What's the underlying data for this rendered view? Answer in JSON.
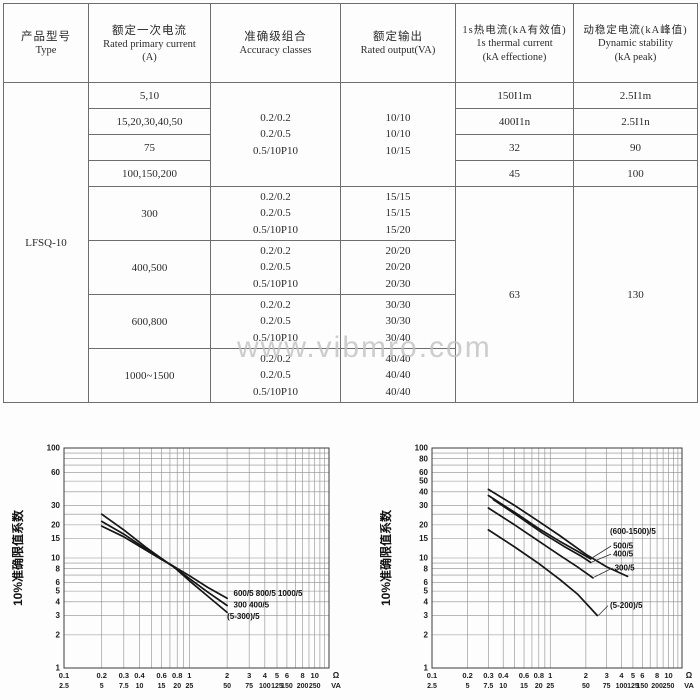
{
  "watermark": "www.vibmro.com",
  "table": {
    "headers": [
      {
        "zh": "产品型号",
        "en": "Type",
        "unit": ""
      },
      {
        "zh": "额定一次电流",
        "en": "Rated primary current",
        "unit": "(A)"
      },
      {
        "zh": "准确级组合",
        "en": "Accuracy classes",
        "unit": ""
      },
      {
        "zh": "额定输出",
        "en": "Rated output(VA)",
        "unit": ""
      },
      {
        "zh": "1s热电流(kA有效值)",
        "en": "1s thermal current",
        "unit": "(kA effectione)"
      },
      {
        "zh": "动稳定电流(kA峰值)",
        "en": "Dynamic stability",
        "unit": "(kA peak)"
      }
    ],
    "type_value": "LFSQ-10",
    "group1": {
      "currents": [
        "5,10",
        "15,20,30,40,50",
        "75",
        "100,150,200"
      ],
      "accuracy": [
        "0.2/0.2",
        "0.2/0.5",
        "0.5/10P10"
      ],
      "output": [
        "10/10",
        "10/10",
        "10/15"
      ],
      "thermal": [
        "150I1m",
        "400I1n",
        "32",
        "45"
      ],
      "dynamic": [
        "2.5I1m",
        "2.5I1n",
        "90",
        "100"
      ]
    },
    "group2": {
      "rows": [
        {
          "current": "300",
          "accuracy": [
            "0.2/0.2",
            "0.2/0.5",
            "0.5/10P10"
          ],
          "output": [
            "15/15",
            "15/15",
            "15/20"
          ]
        },
        {
          "current": "400,500",
          "accuracy": [
            "0.2/0.2",
            "0.2/0.5",
            "0.5/10P10"
          ],
          "output": [
            "20/20",
            "20/20",
            "20/30"
          ]
        },
        {
          "current": "600,800",
          "accuracy": [
            "0.2/0.2",
            "0.2/0.5",
            "0.5/10P10"
          ],
          "output": [
            "30/30",
            "30/30",
            "30/40"
          ]
        },
        {
          "current": "1000~1500",
          "accuracy": [
            "0.2/0.2",
            "0.2/0.5",
            "0.5/10P10"
          ],
          "output": [
            "40/40",
            "40/40",
            "40/40"
          ]
        }
      ],
      "thermal": "63",
      "dynamic": "130"
    }
  },
  "chart_data": [
    {
      "type": "line",
      "title": "",
      "ylabel": "10%准确限值系数",
      "xlabel": "",
      "xlim": [
        0.1,
        13
      ],
      "ylim": [
        1,
        100
      ],
      "log_x": true,
      "log_y": true,
      "grid": true,
      "x_tick_values": [
        0.1,
        0.2,
        0.3,
        0.4,
        0.6,
        0.8,
        1,
        2,
        3,
        4,
        5,
        6,
        8,
        10
      ],
      "x_tick_labels_primary": [
        "0.1",
        "0.2",
        "0.3",
        "0.4",
        "0.6",
        "0.8",
        "1",
        "2",
        "3",
        "4",
        "5",
        "6",
        "8",
        "10"
      ],
      "x_tick_labels_secondary": [
        "2.5",
        "5",
        "7.5",
        "10",
        "15",
        "20",
        "25",
        "50",
        "75",
        "100",
        "125",
        "150",
        "200",
        "250"
      ],
      "x_unit_primary": "Ω",
      "x_unit_secondary": "VA",
      "y_tick_values": [
        1,
        2,
        3,
        4,
        5,
        6,
        8,
        10,
        15,
        20,
        30,
        60,
        100
      ],
      "series": [
        {
          "name": "(5-300)/5",
          "points": [
            [
              0.2,
              25
            ],
            [
              0.3,
              18
            ],
            [
              0.45,
              12.5
            ],
            [
              0.6,
              9.9
            ],
            [
              0.75,
              8.3
            ],
            [
              1,
              6.2
            ],
            [
              1.4,
              4.5
            ],
            [
              2,
              3.2
            ]
          ]
        },
        {
          "name": "300 400/5",
          "points": [
            [
              0.2,
              21.5
            ],
            [
              0.3,
              16.5
            ],
            [
              0.45,
              12.1
            ],
            [
              0.6,
              9.8
            ],
            [
              0.75,
              8.3
            ],
            [
              1,
              6.5
            ],
            [
              1.4,
              4.9
            ],
            [
              2,
              3.7
            ]
          ]
        },
        {
          "name": "600/5 800/5 1000/5",
          "points": [
            [
              0.2,
              19.5
            ],
            [
              0.3,
              15.6
            ],
            [
              0.45,
              11.8
            ],
            [
              0.6,
              9.7
            ],
            [
              0.75,
              8.4
            ],
            [
              1,
              6.9
            ],
            [
              1.4,
              5.4
            ],
            [
              2,
              4.3
            ]
          ]
        }
      ],
      "labels": [
        {
          "text": "600/5 800/5 1000/5",
          "x": 2.25,
          "y": 4.5
        },
        {
          "text": "300 400/5",
          "x": 2.25,
          "y": 3.55
        },
        {
          "text": "(5-300)/5",
          "x": 2.0,
          "y": 2.8
        }
      ]
    },
    {
      "type": "line",
      "title": "",
      "ylabel": "10%准确限值系数",
      "xlabel": "",
      "xlim": [
        0.1,
        13
      ],
      "ylim": [
        1,
        100
      ],
      "log_x": true,
      "log_y": true,
      "grid": true,
      "x_tick_values": [
        0.1,
        0.2,
        0.3,
        0.4,
        0.6,
        0.8,
        1,
        2,
        3,
        4,
        5,
        6,
        8,
        10
      ],
      "x_tick_labels_primary": [
        "0.1",
        "0.2",
        "0.3",
        "0.4",
        "0.6",
        "0.8",
        "1",
        "2",
        "3",
        "4",
        "5",
        "6",
        "8",
        "10"
      ],
      "x_tick_labels_secondary": [
        "2.5",
        "5",
        "7.5",
        "10",
        "15",
        "20",
        "25",
        "50",
        "75",
        "100",
        "125",
        "150",
        "200",
        "250"
      ],
      "x_unit_primary": "Ω",
      "x_unit_secondary": "VA",
      "y_tick_values": [
        1,
        2,
        3,
        4,
        5,
        6,
        8,
        10,
        15,
        20,
        30,
        40,
        50,
        60,
        80,
        100
      ],
      "series": [
        {
          "name": "(600-1500)/5",
          "points": [
            [
              0.3,
              42
            ],
            [
              0.5,
              30
            ],
            [
              0.8,
              21.5
            ],
            [
              1.2,
              16
            ],
            [
              2,
              10.8
            ],
            [
              3,
              8.3
            ],
            [
              4.5,
              6.8
            ]
          ]
        },
        {
          "name": "500/5",
          "points": [
            [
              0.3,
              37
            ],
            [
              0.5,
              26
            ],
            [
              0.8,
              18.5
            ],
            [
              1.2,
              14.2
            ],
            [
              1.7,
              11.5
            ],
            [
              2.2,
              9.8
            ]
          ]
        },
        {
          "name": "400/5",
          "points": [
            [
              0.33,
              34
            ],
            [
              0.55,
              23.5
            ],
            [
              0.85,
              17
            ],
            [
              1.3,
              12.8
            ],
            [
              1.8,
              10.5
            ],
            [
              2.2,
              9.1
            ]
          ]
        },
        {
          "name": "300/5",
          "points": [
            [
              0.3,
              28.5
            ],
            [
              0.5,
              20
            ],
            [
              0.8,
              14.2
            ],
            [
              1.2,
              10.6
            ],
            [
              1.7,
              8.3
            ],
            [
              2.3,
              6.6
            ]
          ]
        },
        {
          "name": "(5-200)/5",
          "points": [
            [
              0.3,
              18
            ],
            [
              0.5,
              12.6
            ],
            [
              0.8,
              8.9
            ],
            [
              1.2,
              6.4
            ],
            [
              1.7,
              4.7
            ],
            [
              2.5,
              3.0
            ]
          ]
        }
      ],
      "labels": [
        {
          "text": "(600-1500)/5",
          "x": 3.2,
          "y": 16.5
        },
        {
          "text": "500/5",
          "x": 3.4,
          "y": 12.2,
          "leader_from": [
            2.25,
            10.0
          ]
        },
        {
          "text": "400/5",
          "x": 3.4,
          "y": 10.3,
          "leader_from": [
            2.25,
            9.2
          ]
        },
        {
          "text": "300/5",
          "x": 3.5,
          "y": 7.7,
          "leader_from": [
            2.35,
            6.7
          ]
        },
        {
          "text": "(5-200)/5",
          "x": 3.2,
          "y": 3.5,
          "leader_from": [
            2.55,
            3.0
          ]
        }
      ]
    }
  ]
}
